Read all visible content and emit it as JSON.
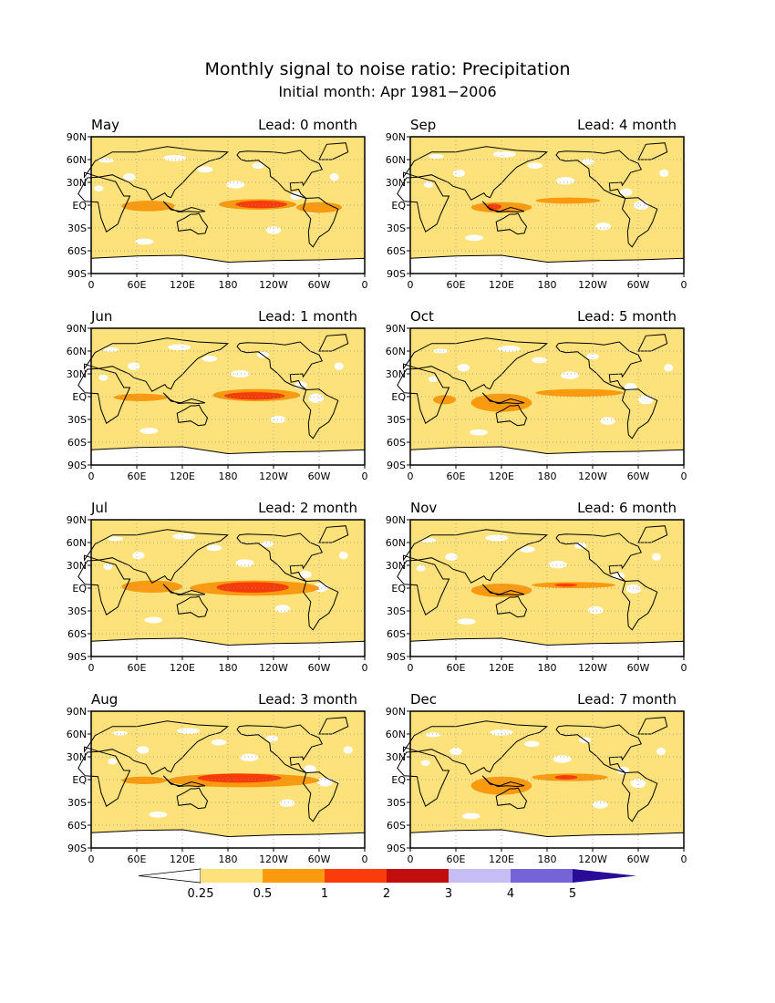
{
  "chart_data": {
    "type": "heatmap",
    "title": "Monthly signal to noise ratio: Precipitation",
    "subtitle": "Initial month: Apr 1981−2006",
    "x_ticks": [
      "0",
      "60E",
      "120E",
      "180",
      "120W",
      "60W",
      "0"
    ],
    "y_ticks": [
      "90N",
      "60N",
      "30N",
      "EQ",
      "30S",
      "60S",
      "90S"
    ],
    "xlim": [
      0,
      360
    ],
    "ylim": [
      -90,
      90
    ],
    "colorbar": {
      "labels": [
        "0.25",
        "0.5",
        "1",
        "2",
        "3",
        "4",
        "5"
      ],
      "colors": [
        "#ffffff",
        "#fde27b",
        "#fb9a0e",
        "#fb3c0a",
        "#c20d0d",
        "#c6bdf5",
        "#7564d8",
        "#2a0c98"
      ]
    },
    "panels": [
      {
        "month": "May",
        "lead": "Lead: 0 month",
        "row": 0,
        "col": 0,
        "features": [
          {
            "lon": [
              168,
              270
            ],
            "lat": [
              -6,
              8
            ],
            "level": 2
          },
          {
            "lon": [
              190,
              258
            ],
            "lat": [
              -4,
              6
            ],
            "level": 3
          },
          {
            "lon": [
              40,
              110
            ],
            "lat": [
              -8,
              6
            ],
            "level": 2
          },
          {
            "lon": [
              270,
              330
            ],
            "lat": [
              -10,
              4
            ],
            "level": 2
          }
        ]
      },
      {
        "month": "Sep",
        "lead": "Lead: 4 month",
        "row": 0,
        "col": 1,
        "features": [
          {
            "lon": [
              80,
              160
            ],
            "lat": [
              -10,
              4
            ],
            "level": 2
          },
          {
            "lon": [
              165,
              250
            ],
            "lat": [
              2,
              10
            ],
            "level": 2
          },
          {
            "lon": [
              100,
              120
            ],
            "lat": [
              -6,
              2
            ],
            "level": 3
          }
        ]
      },
      {
        "month": "Jun",
        "lead": "Lead: 1 month",
        "row": 1,
        "col": 0,
        "features": [
          {
            "lon": [
              160,
              275
            ],
            "lat": [
              -6,
              10
            ],
            "level": 2
          },
          {
            "lon": [
              175,
              255
            ],
            "lat": [
              -4,
              6
            ],
            "level": 3
          },
          {
            "lon": [
              30,
              100
            ],
            "lat": [
              -6,
              4
            ],
            "level": 2
          }
        ]
      },
      {
        "month": "Oct",
        "lead": "Lead: 5 month",
        "row": 1,
        "col": 1,
        "features": [
          {
            "lon": [
              80,
              160
            ],
            "lat": [
              -20,
              4
            ],
            "level": 2
          },
          {
            "lon": [
              165,
              280
            ],
            "lat": [
              0,
              10
            ],
            "level": 2
          },
          {
            "lon": [
              30,
              60
            ],
            "lat": [
              -10,
              2
            ],
            "level": 2
          }
        ]
      },
      {
        "month": "Jul",
        "lead": "Lead: 2 month",
        "row": 2,
        "col": 0,
        "features": [
          {
            "lon": [
              130,
              300
            ],
            "lat": [
              -10,
              10
            ],
            "level": 2
          },
          {
            "lon": [
              165,
              260
            ],
            "lat": [
              -6,
              8
            ],
            "level": 3
          },
          {
            "lon": [
              40,
              120
            ],
            "lat": [
              -6,
              10
            ],
            "level": 2
          }
        ]
      },
      {
        "month": "Nov",
        "lead": "Lead: 6 month",
        "row": 2,
        "col": 1,
        "features": [
          {
            "lon": [
              80,
              160
            ],
            "lat": [
              -12,
              6
            ],
            "level": 2
          },
          {
            "lon": [
              160,
              270
            ],
            "lat": [
              0,
              8
            ],
            "level": 2
          },
          {
            "lon": [
              190,
              220
            ],
            "lat": [
              2,
              6
            ],
            "level": 3
          }
        ]
      },
      {
        "month": "Aug",
        "lead": "Lead: 3 month",
        "row": 3,
        "col": 0,
        "features": [
          {
            "lon": [
              100,
              300
            ],
            "lat": [
              -10,
              8
            ],
            "level": 2
          },
          {
            "lon": [
              140,
              250
            ],
            "lat": [
              -4,
              8
            ],
            "level": 3
          },
          {
            "lon": [
              40,
              100
            ],
            "lat": [
              -6,
              4
            ],
            "level": 2
          }
        ]
      },
      {
        "month": "Dec",
        "lead": "Lead: 7 month",
        "row": 3,
        "col": 1,
        "features": [
          {
            "lon": [
              80,
              160
            ],
            "lat": [
              -20,
              4
            ],
            "level": 2
          },
          {
            "lon": [
              160,
              260
            ],
            "lat": [
              -2,
              8
            ],
            "level": 2
          },
          {
            "lon": [
              190,
              220
            ],
            "lat": [
              0,
              6
            ],
            "level": 3
          }
        ]
      }
    ]
  }
}
